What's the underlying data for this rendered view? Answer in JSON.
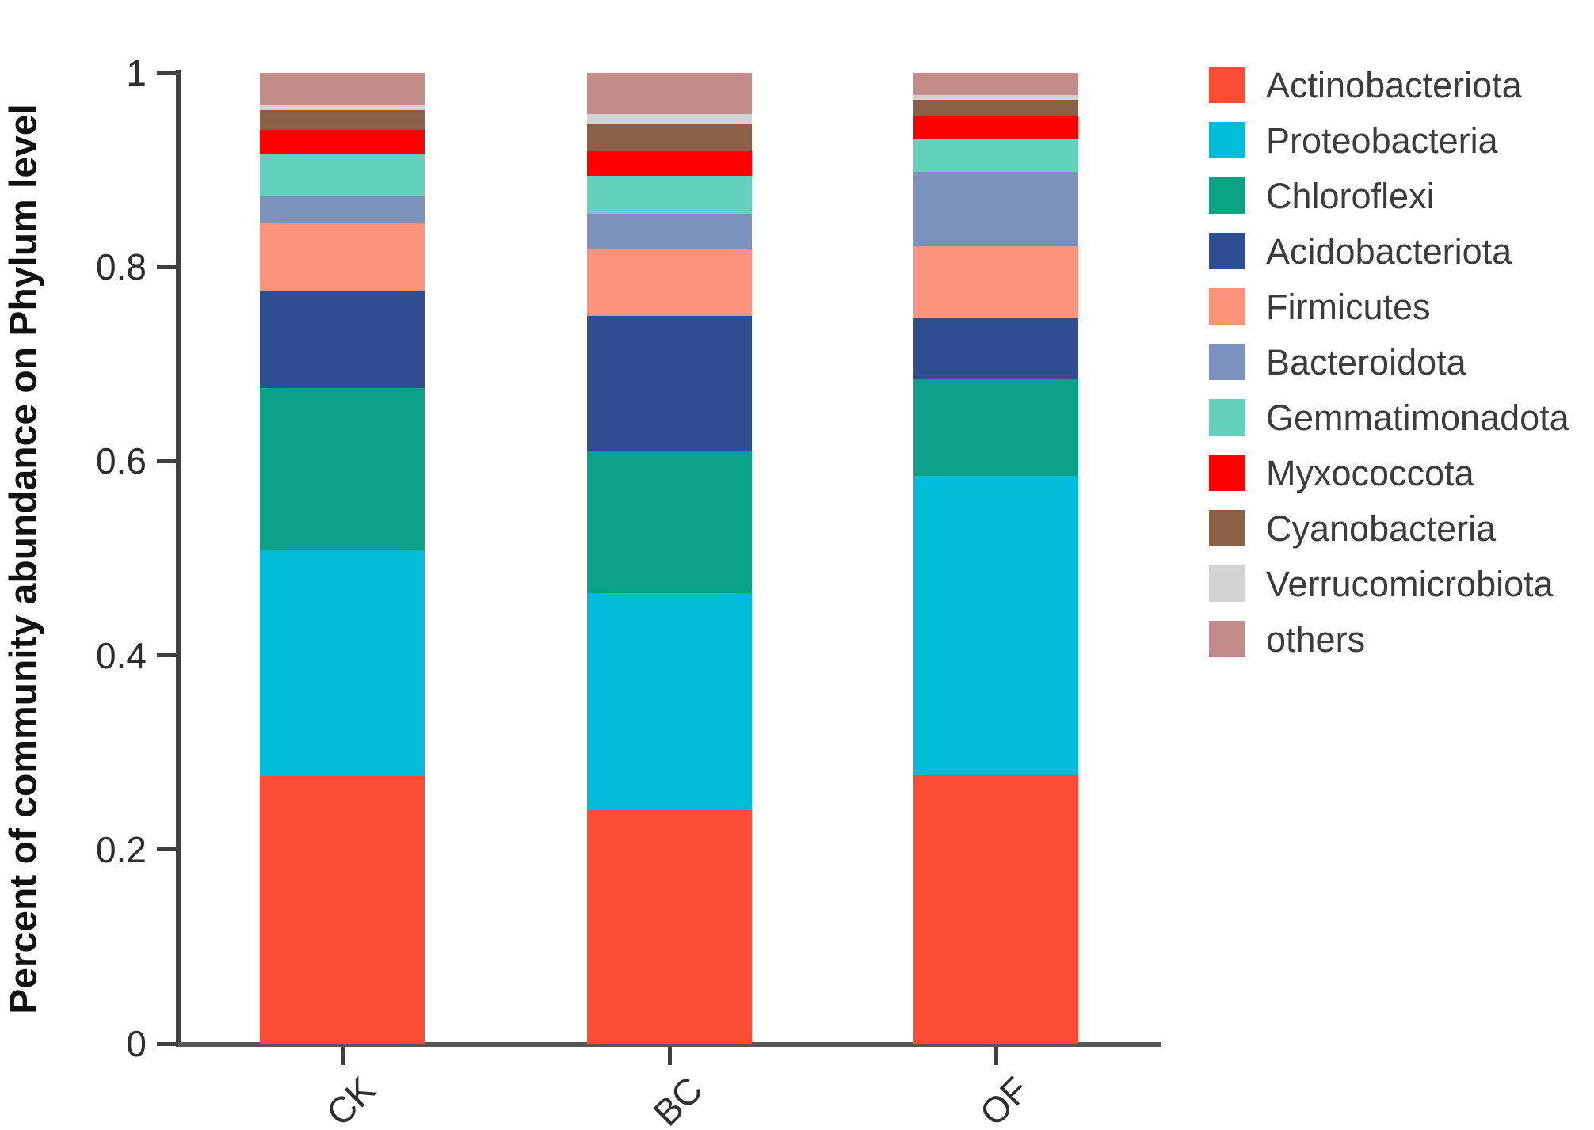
{
  "chart_data": {
    "type": "bar",
    "subtype": "stacked-vertical",
    "title": "",
    "ylabel": "Percent of community abundance on Phylum level",
    "xlabel": "",
    "ylim": [
      0,
      1
    ],
    "grid": false,
    "legend_position": "right-outside",
    "categories": [
      "CK",
      "BC",
      "OF"
    ],
    "yticks": [
      {
        "label": "0",
        "value": 0
      },
      {
        "label": "0.2",
        "value": 0.2
      },
      {
        "label": "0.4",
        "value": 0.4
      },
      {
        "label": "0.6",
        "value": 0.6
      },
      {
        "label": "0.8",
        "value": 0.8
      },
      {
        "label": "1",
        "value": 1
      }
    ],
    "series": [
      {
        "name": "Actinobacteriota",
        "color": "#FA4B35",
        "values": [
          0.276,
          0.241,
          0.276
        ]
      },
      {
        "name": "Proteobacteria",
        "color": "#00BCD8",
        "values": [
          0.233,
          0.223,
          0.309
        ]
      },
      {
        "name": "Chloroflexi",
        "color": "#0BA287",
        "values": [
          0.166,
          0.147,
          0.1
        ]
      },
      {
        "name": "Acidobacteriota",
        "color": "#2F4E8F",
        "values": [
          0.101,
          0.139,
          0.063
        ]
      },
      {
        "name": "Firmicutes",
        "color": "#FB947C",
        "values": [
          0.069,
          0.068,
          0.073
        ]
      },
      {
        "name": "Bacteroidota",
        "color": "#7B92BE",
        "values": [
          0.028,
          0.037,
          0.077
        ]
      },
      {
        "name": "Gemmatimonadota",
        "color": "#63D1BB",
        "values": [
          0.043,
          0.039,
          0.033
        ]
      },
      {
        "name": "Myxococcota",
        "color": "#FE0000",
        "values": [
          0.025,
          0.025,
          0.024
        ]
      },
      {
        "name": "Cyanobacteria",
        "color": "#8A5F46",
        "values": [
          0.021,
          0.028,
          0.017
        ]
      },
      {
        "name": "Verrucomicrobiota",
        "color": "#D2D2D2",
        "values": [
          0.005,
          0.011,
          0.005
        ]
      },
      {
        "name": "others",
        "color": "#C28B88",
        "values": [
          0.033,
          0.042,
          0.023
        ]
      }
    ]
  }
}
